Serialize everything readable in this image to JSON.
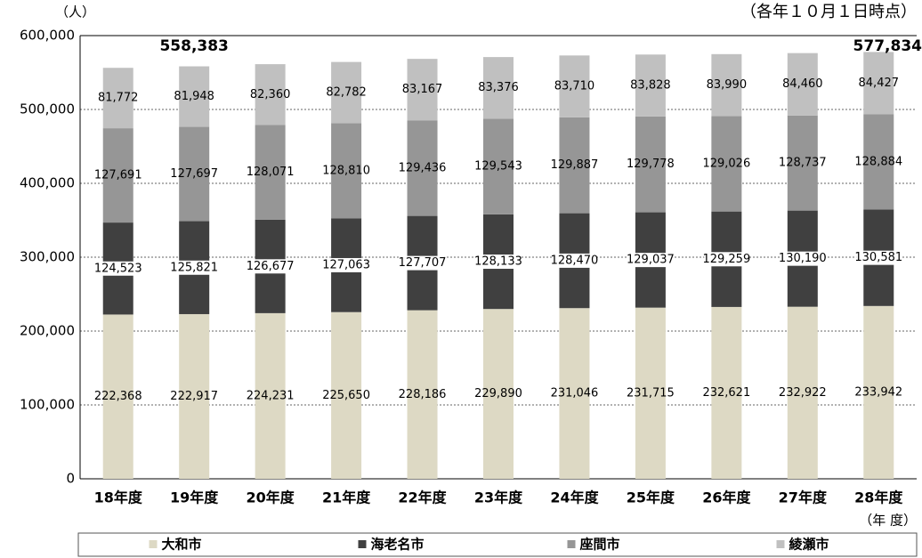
{
  "chart_data": {
    "type": "stacked_bar",
    "y_unit": "（人）",
    "note": "（各年１０月１日時点）",
    "x_label": "（年 度）",
    "categories": [
      "18年度",
      "19年度",
      "20年度",
      "21年度",
      "22年度",
      "23年度",
      "24年度",
      "25年度",
      "26年度",
      "27年度",
      "28年度"
    ],
    "series": [
      {
        "name": "大和市",
        "color": "#ddd9c4",
        "values": [
          222368,
          222917,
          224231,
          225650,
          228186,
          229890,
          231046,
          231715,
          232621,
          232922,
          233942
        ],
        "value_labels": [
          "222,368",
          "222,917",
          "224,231",
          "225,650",
          "228,186",
          "229,890",
          "231,046",
          "231,715",
          "232,621",
          "232,922",
          "233,942"
        ]
      },
      {
        "name": "海老名市",
        "color": "#404040",
        "values": [
          124523,
          125821,
          126677,
          127063,
          127707,
          128133,
          128470,
          129037,
          129259,
          130190,
          130581
        ],
        "value_labels": [
          "124,523",
          "125,821",
          "126,677",
          "127,063",
          "127,707",
          "128,133",
          "128,470",
          "129,037",
          "129,259",
          "130,190",
          "130,581"
        ]
      },
      {
        "name": "座間市",
        "color": "#969696",
        "values": [
          127691,
          127697,
          128071,
          128810,
          129436,
          129543,
          129887,
          129778,
          129026,
          128737,
          128884
        ],
        "value_labels": [
          "127,691",
          "127,697",
          "128,071",
          "128,810",
          "129,436",
          "129,543",
          "129,887",
          "129,778",
          "129,026",
          "128,737",
          "128,884"
        ]
      },
      {
        "name": "綾瀬市",
        "color": "#c0c0c0",
        "values": [
          81772,
          81948,
          82360,
          82782,
          83167,
          83376,
          83710,
          83828,
          83990,
          84460,
          84427
        ],
        "value_labels": [
          "81,772",
          "81,948",
          "82,360",
          "82,782",
          "83,167",
          "83,376",
          "83,710",
          "83,828",
          "83,990",
          "84,460",
          "84,427"
        ]
      }
    ],
    "totals": [
      {
        "value": 558383,
        "label": "558,383",
        "category": "19年度"
      },
      {
        "value": 577834,
        "label": "577,834",
        "category": "28年度"
      }
    ],
    "ylim": [
      0,
      600000
    ],
    "yticks": [
      0,
      {
        "value": 100000,
        "label": "100,000"
      },
      {
        "value": 200000,
        "label": "200,000"
      },
      {
        "value": 300000,
        "label": "300,000"
      },
      {
        "value": 400000,
        "label": "400,000"
      },
      {
        "value": 500000,
        "label": "500,000"
      },
      {
        "value": 600000,
        "label": "600,000"
      }
    ],
    "grid": true,
    "legend": "bottom"
  }
}
